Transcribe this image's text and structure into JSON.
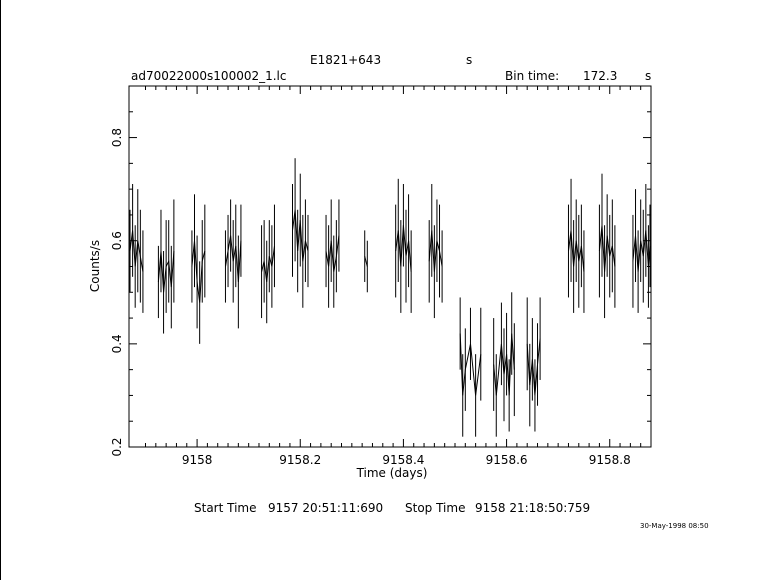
{
  "header": {
    "source_name": "E1821+643",
    "instrument_flag": "s",
    "file_name": "ad70022000s100002_1.lc",
    "bin_time_label": "Bin time:",
    "bin_time_value": "172.3",
    "bin_time_unit": "s"
  },
  "footer": {
    "start_label": "Start Time",
    "start_value": "9157 20:51:11:690",
    "stop_label": "Stop Time",
    "stop_value": "9158 21:18:50:759",
    "print_date": "30-May-1998 08:50"
  },
  "chart_data": {
    "type": "line",
    "title": "E1821+643",
    "xlabel": "Time (days)",
    "ylabel": "Counts/s",
    "xlim": [
      9157.868,
      9158.88
    ],
    "ylim": [
      0.2,
      0.9
    ],
    "grid": false,
    "legend": "none",
    "series_color": "#000000",
    "x_ticks": [
      {
        "value": 9158.0,
        "label": "9158"
      },
      {
        "value": 9158.2,
        "label": "9158.2"
      },
      {
        "value": 9158.4,
        "label": "9158.4"
      },
      {
        "value": 9158.6,
        "label": "9158.6"
      },
      {
        "value": 9158.8,
        "label": "9158.8"
      }
    ],
    "y_ticks": [
      {
        "value": 0.2,
        "label": "0.2"
      },
      {
        "value": 0.4,
        "label": "0.4"
      },
      {
        "value": 0.6,
        "label": "0.6"
      },
      {
        "value": 0.8,
        "label": "0.8"
      }
    ],
    "segments": [
      {
        "x": [
          9157.87,
          9157.875,
          9157.88,
          9157.885,
          9157.89,
          9157.895
        ],
        "y": [
          0.58,
          0.62,
          0.55,
          0.6,
          0.57,
          0.54
        ],
        "err": [
          0.08,
          0.09,
          0.08,
          0.1,
          0.09,
          0.08
        ]
      },
      {
        "x": [
          9157.925,
          9157.93,
          9157.935,
          9157.94,
          9157.945,
          9157.95,
          9157.955
        ],
        "y": [
          0.52,
          0.58,
          0.5,
          0.55,
          0.56,
          0.51,
          0.58
        ],
        "err": [
          0.07,
          0.08,
          0.08,
          0.09,
          0.08,
          0.08,
          0.1
        ]
      },
      {
        "x": [
          9157.99,
          9157.995,
          9158.0,
          9158.005,
          9158.01,
          9158.015
        ],
        "y": [
          0.55,
          0.6,
          0.52,
          0.48,
          0.56,
          0.58
        ],
        "err": [
          0.07,
          0.09,
          0.09,
          0.08,
          0.08,
          0.09
        ]
      },
      {
        "x": [
          9158.055,
          9158.06,
          9158.065,
          9158.07,
          9158.075,
          9158.08,
          9158.085
        ],
        "y": [
          0.55,
          0.58,
          0.61,
          0.56,
          0.59,
          0.52,
          0.6
        ],
        "err": [
          0.07,
          0.07,
          0.07,
          0.08,
          0.08,
          0.09,
          0.07
        ]
      },
      {
        "x": [
          9158.125,
          9158.13,
          9158.135,
          9158.14,
          9158.145,
          9158.15
        ],
        "y": [
          0.54,
          0.56,
          0.52,
          0.57,
          0.55,
          0.59
        ],
        "err": [
          0.09,
          0.08,
          0.08,
          0.07,
          0.08,
          0.08
        ]
      },
      {
        "x": [
          9158.185,
          9158.19,
          9158.195,
          9158.2,
          9158.205,
          9158.21,
          9158.215
        ],
        "y": [
          0.62,
          0.66,
          0.58,
          0.64,
          0.56,
          0.6,
          0.58
        ],
        "err": [
          0.09,
          0.1,
          0.08,
          0.09,
          0.09,
          0.08,
          0.07
        ]
      },
      {
        "x": [
          9158.25,
          9158.255,
          9158.26,
          9158.265,
          9158.27,
          9158.275
        ],
        "y": [
          0.58,
          0.55,
          0.6,
          0.54,
          0.57,
          0.61
        ],
        "err": [
          0.07,
          0.08,
          0.08,
          0.07,
          0.07,
          0.07
        ]
      },
      {
        "x": [
          9158.325,
          9158.33
        ],
        "y": [
          0.57,
          0.55
        ],
        "err": [
          0.05,
          0.05
        ]
      },
      {
        "x": [
          9158.385,
          9158.39,
          9158.395,
          9158.4,
          9158.405,
          9158.41,
          9158.415
        ],
        "y": [
          0.58,
          0.62,
          0.55,
          0.63,
          0.57,
          0.6,
          0.54
        ],
        "err": [
          0.09,
          0.1,
          0.09,
          0.08,
          0.09,
          0.09,
          0.08
        ]
      },
      {
        "x": [
          9158.45,
          9158.455,
          9158.46,
          9158.465,
          9158.47,
          9158.475
        ],
        "y": [
          0.56,
          0.62,
          0.54,
          0.6,
          0.58,
          0.55
        ],
        "err": [
          0.08,
          0.09,
          0.09,
          0.08,
          0.09,
          0.07
        ]
      },
      {
        "x": [
          9158.51,
          9158.515,
          9158.52,
          9158.53,
          9158.54,
          9158.55
        ],
        "y": [
          0.42,
          0.3,
          0.35,
          0.4,
          0.3,
          0.38
        ],
        "err": [
          0.07,
          0.08,
          0.08,
          0.07,
          0.08,
          0.09
        ]
      },
      {
        "x": [
          9158.575,
          9158.58,
          9158.59,
          9158.595,
          9158.6,
          9158.605,
          9158.61,
          9158.615
        ],
        "y": [
          0.36,
          0.3,
          0.4,
          0.34,
          0.38,
          0.3,
          0.42,
          0.35
        ],
        "err": [
          0.09,
          0.08,
          0.08,
          0.09,
          0.08,
          0.07,
          0.08,
          0.09
        ]
      },
      {
        "x": [
          9158.64,
          9158.645,
          9158.65,
          9158.655,
          9158.66,
          9158.665
        ],
        "y": [
          0.4,
          0.32,
          0.37,
          0.3,
          0.36,
          0.41
        ],
        "err": [
          0.09,
          0.08,
          0.08,
          0.07,
          0.08,
          0.08
        ]
      },
      {
        "x": [
          9158.72,
          9158.725,
          9158.73,
          9158.735,
          9158.74,
          9158.745,
          9158.75
        ],
        "y": [
          0.58,
          0.62,
          0.55,
          0.6,
          0.56,
          0.59,
          0.54
        ],
        "err": [
          0.09,
          0.1,
          0.09,
          0.08,
          0.09,
          0.08,
          0.08
        ]
      },
      {
        "x": [
          9158.78,
          9158.785,
          9158.79,
          9158.795,
          9158.8,
          9158.805,
          9158.81
        ],
        "y": [
          0.58,
          0.63,
          0.54,
          0.61,
          0.57,
          0.59,
          0.55
        ],
        "err": [
          0.09,
          0.1,
          0.09,
          0.08,
          0.08,
          0.09,
          0.08
        ]
      },
      {
        "x": [
          9158.845,
          9158.85,
          9158.855,
          9158.86,
          9158.865,
          9158.87,
          9158.875,
          9158.878
        ],
        "y": [
          0.56,
          0.61,
          0.54,
          0.6,
          0.57,
          0.62,
          0.55,
          0.59
        ],
        "err": [
          0.09,
          0.09,
          0.08,
          0.08,
          0.09,
          0.09,
          0.08,
          0.08
        ]
      }
    ]
  }
}
